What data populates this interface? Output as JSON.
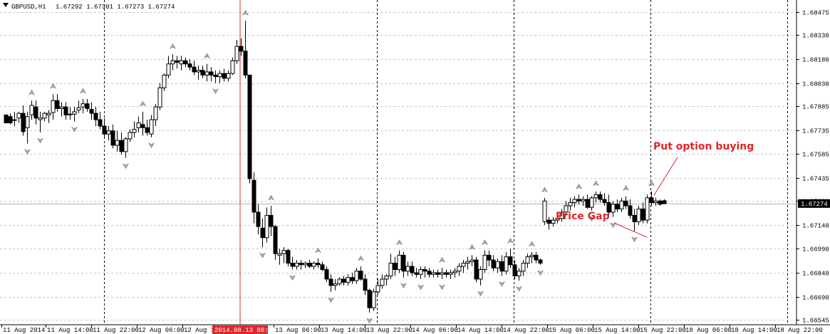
{
  "header": {
    "symbol": "GBPUSD,H1",
    "ohlc": "1.67292 1.67301 1.67273 1.67274"
  },
  "colors": {
    "background": "#ffffff",
    "grid": "#c0c0c0",
    "candle": "#000000",
    "annotation": "#e0262b",
    "current_price_bg": "#000000",
    "vline": "#d43030",
    "fractal": "#a0a0a0"
  },
  "chart_data": {
    "type": "candlestick",
    "symbol": "GBPUSD",
    "timeframe": "H1",
    "grid": true,
    "current_price": "1.67274",
    "y_ticks": [
      "1.68475",
      "1.68330",
      "1.68180",
      "1.68030",
      "1.67885",
      "1.67735",
      "1.67585",
      "1.67435",
      "1.67290",
      "1.67140",
      "1.66990",
      "1.66840",
      "1.66690",
      "1.66545"
    ],
    "ylim": [
      1.66545,
      1.68475
    ],
    "x_ticks": [
      "11 Aug 2014",
      "11 Aug 14:00",
      "11 Aug 22:00",
      "12 Aug 06:00",
      "12 Aug 14:00",
      "2014.08.13 00:00",
      "13 Aug 06:00",
      "13 Aug 14:00",
      "13 Aug 22:00",
      "14 Aug 06:00",
      "14 Aug 14:00",
      "14 Aug 22:00",
      "15 Aug 06:00",
      "15 Aug 14:00",
      "15 Aug 22:00",
      "18 Aug 06:00",
      "18 Aug 14:00",
      "18 Aug 22:00"
    ],
    "highlighted_time": "2014.08.13 00:00",
    "candles": [
      [
        1.6783,
        1.6783,
        1.6778,
        1.6778
      ],
      [
        1.6782,
        1.6784,
        1.6777,
        1.6778
      ],
      [
        1.67795,
        1.6785,
        1.6776,
        1.678
      ],
      [
        1.6781,
        1.6785,
        1.6778,
        1.6784
      ],
      [
        1.6784,
        1.6789,
        1.677,
        1.67725
      ],
      [
        1.6775,
        1.6785,
        1.6765,
        1.6782
      ],
      [
        1.6783,
        1.6792,
        1.678,
        1.6789
      ],
      [
        1.6788,
        1.6792,
        1.6777,
        1.6781
      ],
      [
        1.678,
        1.6785,
        1.6772,
        1.6781
      ],
      [
        1.6781,
        1.6785,
        1.6779,
        1.6784
      ],
      [
        1.6783,
        1.6786,
        1.6778,
        1.6784
      ],
      [
        1.67845,
        1.6796,
        1.678,
        1.6792
      ],
      [
        1.6792,
        1.6796,
        1.6785,
        1.6787
      ],
      [
        1.6787,
        1.6791,
        1.6782,
        1.6788
      ],
      [
        1.6788,
        1.6791,
        1.678,
        1.6783
      ],
      [
        1.67835,
        1.6788,
        1.678,
        1.67835
      ],
      [
        1.67835,
        1.6788,
        1.6779,
        1.6785
      ],
      [
        1.6786,
        1.6792,
        1.6784,
        1.67875
      ],
      [
        1.6788,
        1.6793,
        1.6784,
        1.679
      ],
      [
        1.679,
        1.6793,
        1.6785,
        1.6787
      ],
      [
        1.67865,
        1.6791,
        1.678,
        1.6784
      ],
      [
        1.6784,
        1.6788,
        1.6776,
        1.678
      ],
      [
        1.678,
        1.6785,
        1.6774,
        1.6776
      ],
      [
        1.6776,
        1.6781,
        1.6769,
        1.6771
      ],
      [
        1.6771,
        1.6776,
        1.6767,
        1.6773
      ],
      [
        1.6773,
        1.6777,
        1.6762,
        1.6764
      ],
      [
        1.6764,
        1.6773,
        1.676,
        1.6767
      ],
      [
        1.6767,
        1.6772,
        1.6758,
        1.676
      ],
      [
        1.676,
        1.6769,
        1.6756,
        1.6768
      ],
      [
        1.6768,
        1.6774,
        1.6766,
        1.6772
      ],
      [
        1.6772,
        1.6779,
        1.6769,
        1.6774
      ],
      [
        1.6775,
        1.6782,
        1.6772,
        1.6778
      ],
      [
        1.6777,
        1.6785,
        1.677,
        1.6775
      ],
      [
        1.6775,
        1.678,
        1.677,
        1.6772
      ],
      [
        1.6771,
        1.6783,
        1.6769,
        1.678
      ],
      [
        1.678,
        1.679,
        1.6776,
        1.6788
      ],
      [
        1.6788,
        1.6803,
        1.6786,
        1.68
      ],
      [
        1.68,
        1.6809,
        1.6798,
        1.6808
      ],
      [
        1.6808,
        1.682,
        1.6806,
        1.6815
      ],
      [
        1.6815,
        1.6821,
        1.6811,
        1.6817
      ],
      [
        1.6817,
        1.682,
        1.6812,
        1.6816
      ],
      [
        1.6815,
        1.682,
        1.6811,
        1.6817
      ],
      [
        1.6817,
        1.6819,
        1.6813,
        1.6815
      ],
      [
        1.6815,
        1.6818,
        1.6811,
        1.6813
      ],
      [
        1.6813,
        1.6817,
        1.6808,
        1.681
      ],
      [
        1.681,
        1.6814,
        1.6805,
        1.6811
      ],
      [
        1.6811,
        1.6814,
        1.6806,
        1.6808
      ],
      [
        1.6808,
        1.6815,
        1.6804,
        1.681
      ],
      [
        1.681,
        1.6813,
        1.6804,
        1.6808
      ],
      [
        1.6808,
        1.6811,
        1.6803,
        1.6807
      ],
      [
        1.6807,
        1.6811,
        1.6803,
        1.6809
      ],
      [
        1.6809,
        1.6812,
        1.6804,
        1.6806
      ],
      [
        1.6806,
        1.6811,
        1.6804,
        1.6809
      ],
      [
        1.6809,
        1.6819,
        1.6808,
        1.6817
      ],
      [
        1.6817,
        1.683,
        1.6815,
        1.6826
      ],
      [
        1.6826,
        1.6831,
        1.682,
        1.6823
      ],
      [
        1.6823,
        1.6842,
        1.6806,
        1.6808
      ],
      [
        1.6808,
        1.6808,
        1.674,
        1.6743
      ],
      [
        1.6742,
        1.6747,
        1.6715,
        1.6722
      ],
      [
        1.6722,
        1.6727,
        1.6708,
        1.6713
      ],
      [
        1.6712,
        1.6718,
        1.67,
        1.6706
      ],
      [
        1.6706,
        1.6725,
        1.6703,
        1.672
      ],
      [
        1.672,
        1.6726,
        1.6707,
        1.6713
      ],
      [
        1.6713,
        1.6714,
        1.6692,
        1.6696
      ],
      [
        1.6695,
        1.6699,
        1.6689,
        1.6696
      ],
      [
        1.6696,
        1.67,
        1.669,
        1.6698
      ],
      [
        1.6698,
        1.6699,
        1.6688,
        1.669
      ],
      [
        1.669,
        1.6694,
        1.6686,
        1.6688
      ],
      [
        1.6688,
        1.6692,
        1.6686,
        1.669
      ],
      [
        1.669,
        1.6692,
        1.6686,
        1.6689
      ],
      [
        1.6689,
        1.6691,
        1.6687,
        1.669
      ],
      [
        1.669,
        1.6692,
        1.6687,
        1.6688
      ],
      [
        1.6688,
        1.6691,
        1.6686,
        1.669
      ],
      [
        1.669,
        1.6693,
        1.6687,
        1.6689
      ],
      [
        1.6689,
        1.6691,
        1.6685,
        1.6686
      ],
      [
        1.6686,
        1.6688,
        1.6678,
        1.668
      ],
      [
        1.668,
        1.6683,
        1.6672,
        1.6676
      ],
      [
        1.6676,
        1.668,
        1.6673,
        1.6677
      ],
      [
        1.6677,
        1.6681,
        1.6676,
        1.668
      ],
      [
        1.668,
        1.6682,
        1.6676,
        1.6678
      ],
      [
        1.6678,
        1.6683,
        1.6676,
        1.6681
      ],
      [
        1.6681,
        1.6684,
        1.6677,
        1.6679
      ],
      [
        1.6679,
        1.6687,
        1.6677,
        1.6685
      ],
      [
        1.6685,
        1.6688,
        1.6679,
        1.668
      ],
      [
        1.668,
        1.6683,
        1.667,
        1.6673
      ],
      [
        1.6673,
        1.6674,
        1.6659,
        1.6662
      ],
      [
        1.6662,
        1.6674,
        1.666,
        1.6672
      ],
      [
        1.6672,
        1.668,
        1.667,
        1.6676
      ],
      [
        1.6676,
        1.6683,
        1.6674,
        1.668
      ],
      [
        1.668,
        1.6683,
        1.6676,
        1.6682
      ],
      [
        1.6682,
        1.6696,
        1.668,
        1.669
      ],
      [
        1.669,
        1.6694,
        1.6682,
        1.6686
      ],
      [
        1.6686,
        1.6698,
        1.6684,
        1.6695
      ],
      [
        1.6695,
        1.6697,
        1.6681,
        1.6685
      ],
      [
        1.6685,
        1.6691,
        1.6682,
        1.6688
      ],
      [
        1.6688,
        1.6691,
        1.6682,
        1.6684
      ],
      [
        1.6684,
        1.6687,
        1.6681,
        1.6683
      ],
      [
        1.6683,
        1.6688,
        1.668,
        1.6686
      ],
      [
        1.6686,
        1.6688,
        1.6681,
        1.6685
      ],
      [
        1.6685,
        1.6687,
        1.6681,
        1.6683
      ],
      [
        1.6683,
        1.6686,
        1.6681,
        1.6684
      ],
      [
        1.6684,
        1.6686,
        1.6681,
        1.6683
      ],
      [
        1.6683,
        1.6687,
        1.668,
        1.6684
      ],
      [
        1.6684,
        1.6686,
        1.6681,
        1.6683
      ],
      [
        1.6683,
        1.6686,
        1.668,
        1.6684
      ],
      [
        1.6684,
        1.6687,
        1.6681,
        1.6685
      ],
      [
        1.6685,
        1.669,
        1.6682,
        1.6688
      ],
      [
        1.6688,
        1.6692,
        1.6684,
        1.669
      ],
      [
        1.669,
        1.6694,
        1.6686,
        1.6691
      ],
      [
        1.6691,
        1.6695,
        1.6688,
        1.6692
      ],
      [
        1.6692,
        1.6694,
        1.6678,
        1.668
      ],
      [
        1.668,
        1.6688,
        1.6676,
        1.6686
      ],
      [
        1.6686,
        1.6698,
        1.6684,
        1.6695
      ],
      [
        1.6695,
        1.6698,
        1.6688,
        1.6692
      ],
      [
        1.6692,
        1.6695,
        1.6685,
        1.6687
      ],
      [
        1.6687,
        1.6693,
        1.6684,
        1.6691
      ],
      [
        1.6691,
        1.6695,
        1.6682,
        1.6685
      ],
      [
        1.6685,
        1.6697,
        1.6683,
        1.6694
      ],
      [
        1.6694,
        1.6699,
        1.6687,
        1.6689
      ],
      [
        1.6689,
        1.6692,
        1.668,
        1.6682
      ],
      [
        1.6682,
        1.6687,
        1.6679,
        1.6685
      ],
      [
        1.6685,
        1.6692,
        1.6682,
        1.669
      ],
      [
        1.669,
        1.6696,
        1.6687,
        1.6694
      ],
      [
        1.6694,
        1.6697,
        1.669,
        1.6695
      ],
      [
        1.6695,
        1.6697,
        1.669,
        1.6692
      ],
      [
        1.6692,
        1.6693,
        1.6689,
        1.669
      ],
      [
        1.6716,
        1.6731,
        1.6714,
        1.6729
      ],
      [
        1.6717,
        1.6719,
        1.6711,
        1.6715
      ],
      [
        1.6715,
        1.6719,
        1.6713,
        1.6717
      ],
      [
        1.6717,
        1.6721,
        1.6715,
        1.6718
      ],
      [
        1.6718,
        1.6724,
        1.6716,
        1.6722
      ],
      [
        1.6722,
        1.6729,
        1.672,
        1.6726
      ],
      [
        1.6726,
        1.6731,
        1.6723,
        1.6728
      ],
      [
        1.6728,
        1.6732,
        1.6725,
        1.673
      ],
      [
        1.673,
        1.6733,
        1.6727,
        1.6729
      ],
      [
        1.6729,
        1.6732,
        1.6726,
        1.673
      ],
      [
        1.673,
        1.6733,
        1.6724,
        1.6725
      ],
      [
        1.6725,
        1.6732,
        1.6723,
        1.6731
      ],
      [
        1.6731,
        1.6735,
        1.6728,
        1.6733
      ],
      [
        1.6733,
        1.6735,
        1.6728,
        1.673
      ],
      [
        1.673,
        1.6734,
        1.6726,
        1.6728
      ],
      [
        1.6728,
        1.6733,
        1.672,
        1.6722
      ],
      [
        1.6722,
        1.6729,
        1.6719,
        1.6727
      ],
      [
        1.6727,
        1.673,
        1.6722,
        1.6724
      ],
      [
        1.6724,
        1.6731,
        1.6722,
        1.6729
      ],
      [
        1.6729,
        1.6732,
        1.6724,
        1.6726
      ],
      [
        1.6726,
        1.673,
        1.6718,
        1.672
      ],
      [
        1.672,
        1.6724,
        1.671,
        1.6716
      ],
      [
        1.6716,
        1.6726,
        1.6714,
        1.6724
      ],
      [
        1.6724,
        1.6728,
        1.6715,
        1.6717
      ],
      [
        1.6717,
        1.6733,
        1.6715,
        1.6731
      ],
      [
        1.6731,
        1.6735,
        1.6726,
        1.6728
      ],
      [
        1.6728,
        1.6731,
        1.6726,
        1.6729
      ],
      [
        1.6729,
        1.673,
        1.6726,
        1.6727
      ],
      [
        1.67292,
        1.67301,
        1.67273,
        1.67274
      ]
    ],
    "annotations": [
      {
        "text": "Put option buying"
      },
      {
        "text": "Price Gap"
      }
    ]
  }
}
